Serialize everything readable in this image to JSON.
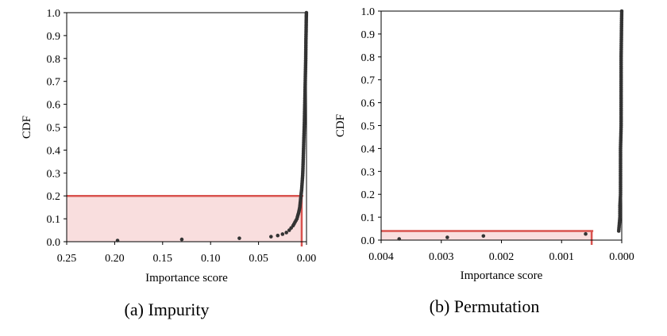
{
  "chart_data": [
    {
      "type": "scatter",
      "caption": "(a)  Impurity",
      "xlabel": "Importance score",
      "ylabel": "CDF",
      "x_reversed": true,
      "xlim": [
        0.25,
        0.0
      ],
      "ylim": [
        0.0,
        1.0
      ],
      "xticks": [
        "0.25",
        "0.20",
        "0.15",
        "0.10",
        "0.05",
        "0.00"
      ],
      "xtick_values": [
        0.25,
        0.2,
        0.15,
        0.1,
        0.05,
        0.0
      ],
      "yticks": [
        "0.0",
        "0.1",
        "0.2",
        "0.3",
        "0.4",
        "0.5",
        "0.6",
        "0.7",
        "0.8",
        "0.9",
        "1.0"
      ],
      "points": [
        {
          "x": 0.197,
          "y": 0.005
        },
        {
          "x": 0.13,
          "y": 0.01
        },
        {
          "x": 0.07,
          "y": 0.015
        },
        {
          "x": 0.037,
          "y": 0.022
        },
        {
          "x": 0.03,
          "y": 0.027
        },
        {
          "x": 0.025,
          "y": 0.033
        },
        {
          "x": 0.021,
          "y": 0.04
        },
        {
          "x": 0.018,
          "y": 0.05
        },
        {
          "x": 0.016,
          "y": 0.06
        },
        {
          "x": 0.014,
          "y": 0.07
        },
        {
          "x": 0.012,
          "y": 0.085
        },
        {
          "x": 0.01,
          "y": 0.1
        },
        {
          "x": 0.009,
          "y": 0.115
        },
        {
          "x": 0.008,
          "y": 0.13
        },
        {
          "x": 0.007,
          "y": 0.15
        },
        {
          "x": 0.0065,
          "y": 0.17
        },
        {
          "x": 0.006,
          "y": 0.19
        },
        {
          "x": 0.0055,
          "y": 0.21
        },
        {
          "x": 0.005,
          "y": 0.23
        },
        {
          "x": 0.0045,
          "y": 0.26
        },
        {
          "x": 0.004,
          "y": 0.29
        },
        {
          "x": 0.0037,
          "y": 0.32
        },
        {
          "x": 0.0034,
          "y": 0.36
        },
        {
          "x": 0.0031,
          "y": 0.4
        },
        {
          "x": 0.0028,
          "y": 0.44
        },
        {
          "x": 0.0025,
          "y": 0.48
        },
        {
          "x": 0.0022,
          "y": 0.52
        },
        {
          "x": 0.002,
          "y": 0.56
        },
        {
          "x": 0.0018,
          "y": 0.6
        },
        {
          "x": 0.0016,
          "y": 0.64
        },
        {
          "x": 0.0014,
          "y": 0.68
        },
        {
          "x": 0.0012,
          "y": 0.72
        },
        {
          "x": 0.001,
          "y": 0.76
        },
        {
          "x": 0.0008,
          "y": 0.8
        },
        {
          "x": 0.0007,
          "y": 0.84
        },
        {
          "x": 0.0006,
          "y": 0.88
        },
        {
          "x": 0.0004,
          "y": 0.92
        },
        {
          "x": 0.0003,
          "y": 0.95
        },
        {
          "x": 0.0002,
          "y": 0.98
        },
        {
          "x": 0.0001,
          "y": 1.0
        }
      ],
      "highlight": {
        "threshold_x": 0.005,
        "threshold_y": 0.2,
        "color": "#d9534f",
        "fill": "#f9dede"
      }
    },
    {
      "type": "scatter",
      "caption": "(b)  Permutation",
      "xlabel": "Importance score",
      "ylabel": "CDF",
      "x_reversed": true,
      "xlim": [
        0.004,
        0.0
      ],
      "ylim": [
        0.0,
        1.0
      ],
      "xticks": [
        "0.004",
        "0.003",
        "0.002",
        "0.001",
        "0.000"
      ],
      "xtick_values": [
        0.004,
        0.003,
        0.002,
        0.001,
        0.0
      ],
      "yticks": [
        "0.0",
        "0.1",
        "0.2",
        "0.3",
        "0.4",
        "0.5",
        "0.6",
        "0.7",
        "0.8",
        "0.9",
        "1.0"
      ],
      "points": [
        {
          "x": 0.0037,
          "y": 0.005
        },
        {
          "x": 0.0029,
          "y": 0.012
        },
        {
          "x": 0.0023,
          "y": 0.018
        },
        {
          "x": 0.0006,
          "y": 0.027
        },
        {
          "x": 5e-05,
          "y": 0.04
        },
        {
          "x": 4e-05,
          "y": 0.07
        },
        {
          "x": 3e-05,
          "y": 0.1
        },
        {
          "x": 3e-05,
          "y": 0.15
        },
        {
          "x": 2e-05,
          "y": 0.2
        },
        {
          "x": 2e-05,
          "y": 0.3
        },
        {
          "x": 2e-05,
          "y": 0.4
        },
        {
          "x": 1e-05,
          "y": 0.5
        },
        {
          "x": 1e-05,
          "y": 0.6
        },
        {
          "x": 1e-05,
          "y": 0.7
        },
        {
          "x": 1e-05,
          "y": 0.8
        },
        {
          "x": 5e-06,
          "y": 0.9
        },
        {
          "x": 3e-06,
          "y": 0.95
        },
        {
          "x": 0.0,
          "y": 1.0
        }
      ],
      "highlight": {
        "threshold_x": 0.0005,
        "threshold_y": 0.04,
        "color": "#d9534f",
        "fill": "#f9dede"
      }
    }
  ],
  "colors": {
    "marker": "#333333",
    "axis": "#000000"
  }
}
